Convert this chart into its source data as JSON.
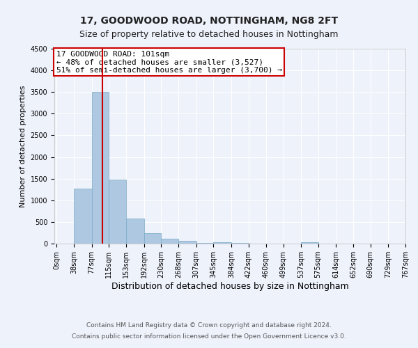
{
  "title1": "17, GOODWOOD ROAD, NOTTINGHAM, NG8 2FT",
  "title2": "Size of property relative to detached houses in Nottingham",
  "xlabel": "Distribution of detached houses by size in Nottingham",
  "ylabel": "Number of detached properties",
  "bar_color": "#adc8e0",
  "bar_edge_color": "#7aaac8",
  "background_color": "#eef2fb",
  "grid_color": "#ffffff",
  "annotation_box_edge_color": "#cc0000",
  "annotation_text": "17 GOODWOOD ROAD: 101sqm\n← 48% of detached houses are smaller (3,527)\n51% of semi-detached houses are larger (3,700) →",
  "vline_color": "#cc0000",
  "vline_x": 101,
  "bins": [
    0,
    38,
    77,
    115,
    153,
    192,
    230,
    268,
    307,
    345,
    384,
    422,
    460,
    499,
    537,
    575,
    614,
    652,
    690,
    729,
    767
  ],
  "counts": [
    5,
    1275,
    3500,
    1475,
    575,
    240,
    115,
    65,
    10,
    40,
    10,
    5,
    0,
    0,
    30,
    5,
    0,
    0,
    0,
    0
  ],
  "ylim": [
    0,
    4500
  ],
  "yticks": [
    0,
    500,
    1000,
    1500,
    2000,
    2500,
    3000,
    3500,
    4000,
    4500
  ],
  "footnote1": "Contains HM Land Registry data © Crown copyright and database right 2024.",
  "footnote2": "Contains public sector information licensed under the Open Government Licence v3.0.",
  "title1_fontsize": 10,
  "title2_fontsize": 9,
  "xlabel_fontsize": 9,
  "ylabel_fontsize": 8,
  "tick_fontsize": 7,
  "annotation_fontsize": 8,
  "footnote_fontsize": 6.5
}
